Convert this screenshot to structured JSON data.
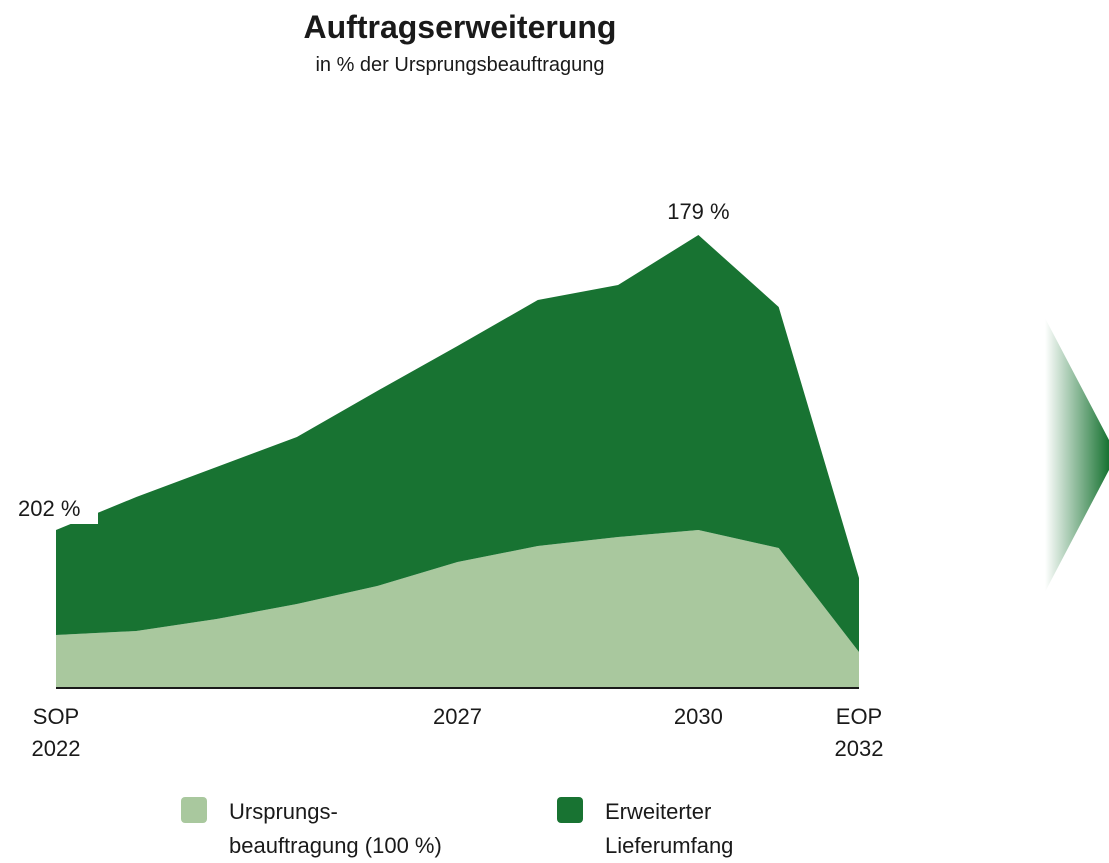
{
  "chart_data": {
    "type": "stacked_area",
    "title": "Auftragserweiterung",
    "subtitle": "in % der Ursprungsbeauftragung",
    "x": [
      2022,
      2023,
      2024,
      2025,
      2026,
      2027,
      2028,
      2029,
      2030,
      2031,
      2032
    ],
    "series": [
      {
        "name": [
          "Ursprungs-",
          "beauftragung (100 %)"
        ],
        "color": "#a9c89e",
        "values": [
          53,
          57,
          69,
          84,
          102,
          126,
          142,
          151,
          158,
          140,
          36
        ]
      },
      {
        "name": [
          "Erweiterter",
          "Lieferumfang"
        ],
        "color": "#187332",
        "values": [
          105,
          134,
          152,
          167,
          195,
          216,
          246,
          252,
          295,
          241,
          74
        ]
      }
    ],
    "xlim": [
      2022,
      2032
    ],
    "xticks": [
      {
        "value": 2022,
        "label": [
          "SOP",
          "2022"
        ]
      },
      2027,
      2030,
      {
        "value": 2032,
        "label": [
          "EOP",
          "2032"
        ]
      }
    ],
    "ylim": [
      0,
      500
    ],
    "annotations": [
      {
        "text": "202 %",
        "x": 2022
      },
      {
        "text": "179 %",
        "x": 2030
      }
    ]
  }
}
